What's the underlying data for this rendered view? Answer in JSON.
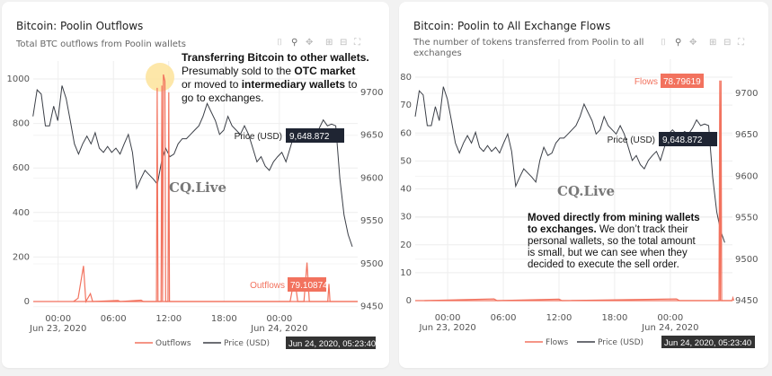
{
  "colors": {
    "flows": "#f2725e",
    "price": "#3b3f47",
    "tooltip_dark": "#1f2533",
    "highlight": "#fde39a"
  },
  "modebar_icons": [
    "camera-icon",
    "zoom-icon",
    "pan-icon",
    "zoom-in-icon",
    "zoom-out-icon",
    "autoscale-icon"
  ],
  "watermark": "CQ.Live",
  "chart_data": [
    {
      "type": "line",
      "title": "Bitcoin: Poolin Outflows",
      "subtitle": "Total BTC outflows from Poolin wallets",
      "x_ticks": [
        [
          "00:00",
          "Jun 23, 2020"
        ],
        [
          "06:00",
          ""
        ],
        [
          "12:00",
          ""
        ],
        [
          "18:00",
          ""
        ],
        [
          "00:00",
          "Jun 24, 2020"
        ]
      ],
      "y_ticks": [
        "0",
        "200",
        "400",
        "600",
        "800",
        "1000"
      ],
      "y2_ticks": [
        "9450",
        "9500",
        "9550",
        "9600",
        "9650",
        "9700"
      ],
      "ylim": [
        0,
        1000
      ],
      "y2lim": [
        9450,
        9700
      ],
      "legend": [
        "Outflows",
        "Price (USD)"
      ],
      "legend_position": "bottom",
      "series": [
        {
          "name": "Outflows",
          "axis": "left",
          "points": [
            [
              "2020-06-23 01:40",
              0
            ],
            [
              "2020-06-23 02:10",
              15
            ],
            [
              "2020-06-23 02:45",
              160
            ],
            [
              "2020-06-23 03:00",
              0
            ],
            [
              "2020-06-23 03:30",
              35
            ],
            [
              "2020-06-23 03:45",
              0
            ],
            [
              "2020-06-23 06:30",
              5
            ],
            [
              "2020-06-23 06:45",
              0
            ],
            [
              "2020-06-23 09:00",
              6
            ],
            [
              "2020-06-23 09:15",
              0
            ],
            [
              "2020-06-23 10:40",
              0
            ],
            [
              "2020-06-23 10:45",
              960
            ],
            [
              "2020-06-23 10:50",
              0
            ],
            [
              "2020-06-23 11:10",
              0
            ],
            [
              "2020-06-23 11:15",
              970
            ],
            [
              "2020-06-23 11:20",
              0
            ],
            [
              "2020-06-23 11:25",
              1020
            ],
            [
              "2020-06-23 11:35",
              990
            ],
            [
              "2020-06-23 11:40",
              0
            ],
            [
              "2020-06-23 11:55",
              0
            ],
            [
              "2020-06-23 12:00",
              940
            ],
            [
              "2020-06-23 12:05",
              0
            ],
            [
              "2020-06-24 01:10",
              0
            ],
            [
              "2020-06-24 01:30",
              75
            ],
            [
              "2020-06-24 01:45",
              75
            ],
            [
              "2020-06-24 02:00",
              0
            ],
            [
              "2020-06-24 02:40",
              0
            ],
            [
              "2020-06-24 03:00",
              175
            ],
            [
              "2020-06-24 03:15",
              0
            ],
            [
              "2020-06-24 05:15",
              0
            ],
            [
              "2020-06-24 05:23",
              79.10874
            ],
            [
              "2020-06-24 05:30",
              0
            ],
            [
              "2020-06-24 08:30",
              0
            ]
          ]
        },
        {
          "name": "Price (USD)",
          "axis": "right",
          "start": "2020-06-22 21:16",
          "interval_minutes": 27,
          "values": [
            9672,
            9703,
            9698,
            9661,
            9661,
            9684,
            9667,
            9708,
            9693,
            9667,
            9640,
            9628,
            9640,
            9649,
            9640,
            9653,
            9635,
            9630,
            9637,
            9630,
            9635,
            9628,
            9640,
            9651,
            9630,
            9588,
            9599,
            9609,
            9604,
            9599,
            9593,
            9619,
            9635,
            9625,
            9628,
            9640,
            9646,
            9646,
            9651,
            9656,
            9661,
            9672,
            9687,
            9677,
            9667,
            9651,
            9656,
            9672,
            9661,
            9656,
            9651,
            9661,
            9651,
            9635,
            9619,
            9625,
            9614,
            9609,
            9619,
            9625,
            9630,
            9619,
            9635,
            9651,
            9656,
            9651,
            9649,
            9654,
            9651,
            9658,
            9668,
            9661,
            9663,
            9661,
            9599,
            9557,
            9534,
            9520
          ]
        }
      ],
      "hover": {
        "price_label": "Price (USD)",
        "price_value": "9,648.872",
        "flow_label": "Outflows",
        "flow_value": "79.10874",
        "date": "Jun 24, 2020, 05:23:40"
      },
      "annotation": {
        "line1_bold": "Transferring Bitcoin to other wallets.",
        "line2_a": "Presumably sold to the ",
        "line2_b": "OTC market",
        "line3_a": "or moved to ",
        "line3_b": "intermediary wallets",
        "line3_c": " to",
        "line4": "go to exchanges."
      }
    },
    {
      "type": "line",
      "title": "Bitcoin: Poolin to All Exchange Flows",
      "subtitle": "The number of tokens transferred from Poolin to all exchanges",
      "x_ticks": [
        [
          "00:00",
          "Jun 23, 2020"
        ],
        [
          "06:00",
          ""
        ],
        [
          "12:00",
          ""
        ],
        [
          "18:00",
          ""
        ],
        [
          "00:00",
          "Jun 24, 2020"
        ]
      ],
      "y_ticks": [
        "0",
        "10",
        "20",
        "30",
        "40",
        "50",
        "60",
        "70",
        "80"
      ],
      "y2_ticks": [
        "9450",
        "9500",
        "9550",
        "9600",
        "9650",
        "9700"
      ],
      "ylim": [
        0,
        80
      ],
      "y2lim": [
        9450,
        9700
      ],
      "legend": [
        "Flows",
        "Price (USD)"
      ],
      "legend_position": "bottom",
      "series": [
        {
          "name": "Flows",
          "axis": "left",
          "points": [
            [
              "2020-06-22 21:30",
              0
            ],
            [
              "2020-06-23 05:00",
              0.6
            ],
            [
              "2020-06-23 05:20",
              0
            ],
            [
              "2020-06-23 12:00",
              0.5
            ],
            [
              "2020-06-23 12:20",
              0
            ],
            [
              "2020-06-24 00:40",
              0.6
            ],
            [
              "2020-06-24 01:00",
              0
            ],
            [
              "2020-06-24 05:15",
              0
            ],
            [
              "2020-06-24 05:20",
              78.79619
            ],
            [
              "2020-06-24 05:23",
              0
            ],
            [
              "2020-06-24 05:28",
              78.79619
            ],
            [
              "2020-06-24 05:32",
              0
            ],
            [
              "2020-06-24 06:40",
              0
            ],
            [
              "2020-06-24 06:45",
              1
            ],
            [
              "2020-06-24 06:50",
              0
            ]
          ]
        },
        {
          "name": "Price (USD)",
          "axis": "right",
          "start": "2020-06-22 20:30",
          "interval_minutes": 26,
          "values": [
            9672,
            9703,
            9698,
            9661,
            9661,
            9684,
            9667,
            9708,
            9693,
            9667,
            9640,
            9628,
            9640,
            9649,
            9640,
            9653,
            9635,
            9630,
            9637,
            9630,
            9635,
            9628,
            9640,
            9651,
            9630,
            9588,
            9599,
            9609,
            9604,
            9599,
            9593,
            9619,
            9635,
            9625,
            9628,
            9640,
            9646,
            9646,
            9651,
            9656,
            9661,
            9672,
            9687,
            9677,
            9667,
            9651,
            9656,
            9672,
            9661,
            9656,
            9651,
            9661,
            9651,
            9635,
            9619,
            9625,
            9614,
            9609,
            9619,
            9625,
            9630,
            9619,
            9635,
            9651,
            9656,
            9651,
            9649,
            9654,
            9651,
            9658,
            9668,
            9661,
            9663,
            9661,
            9599,
            9557,
            9534,
            9520
          ]
        }
      ],
      "hover": {
        "price_label": "Price (USD)",
        "price_value": "9,648.872",
        "flow_label": "Flows",
        "flow_value": "78.79619",
        "date": "Jun 24, 2020, 05:23:40"
      },
      "annotation": {
        "line1_bold": "Moved directly from mining wallets",
        "line2_bold": "to exchanges.",
        "line2_rest": " We don’t track their",
        "line3": "personal wallets, so the total amount",
        "line4": "is small, but we can see when they",
        "line5": "decided to execute the sell order."
      }
    }
  ]
}
